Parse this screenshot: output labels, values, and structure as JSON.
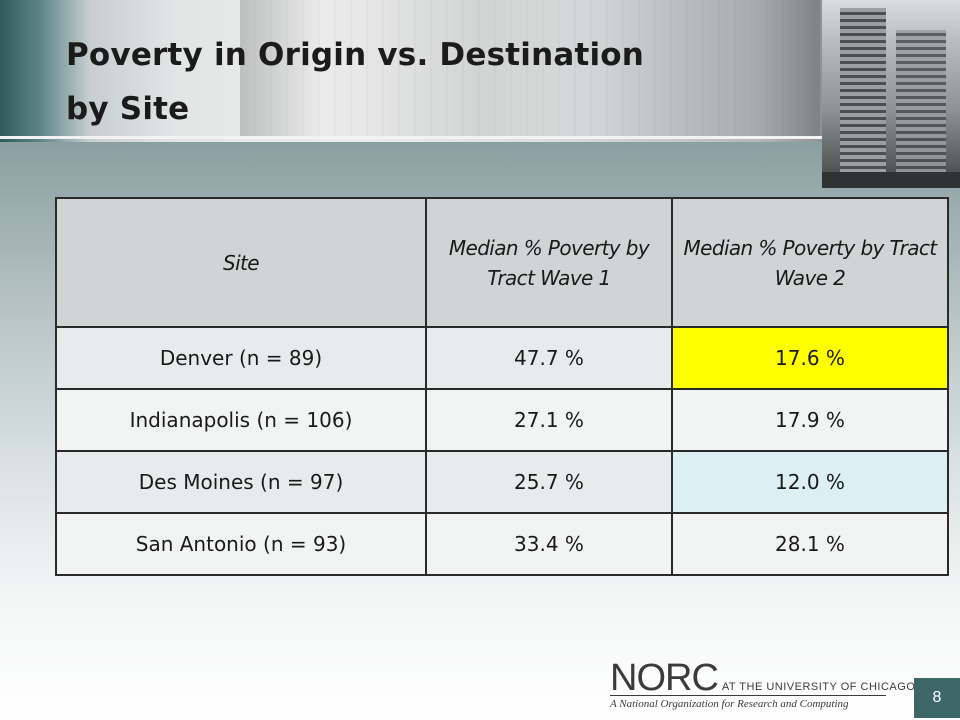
{
  "slide": {
    "title_line1": "Poverty in Origin vs. Destination",
    "title_line2": "by Site",
    "page_number": "8"
  },
  "table": {
    "headers": [
      "Site",
      "Median % Poverty by Tract Wave 1",
      "Median % Poverty by Tract Wave 2"
    ],
    "rows": [
      [
        "Denver (n = 89)",
        "47.7 %",
        "17.6 %"
      ],
      [
        "Indianapolis (n = 106)",
        "27.1 %",
        "17.9 %"
      ],
      [
        "Des Moines (n = 97)",
        "25.7 %",
        "12.0 %"
      ],
      [
        "San Antonio (n = 93)",
        "33.4 %",
        "28.1 %"
      ]
    ],
    "highlight_colors": {
      "yellow": "#ffff00",
      "light_blue": "#dceff2"
    }
  },
  "footer": {
    "logo_main": "NORC",
    "logo_suffix": "AT THE UNIVERSITY OF CHICAGO",
    "logo_tagline": "A National Organization for Research and Computing"
  },
  "colors": {
    "accent_teal": "#3d6668"
  }
}
